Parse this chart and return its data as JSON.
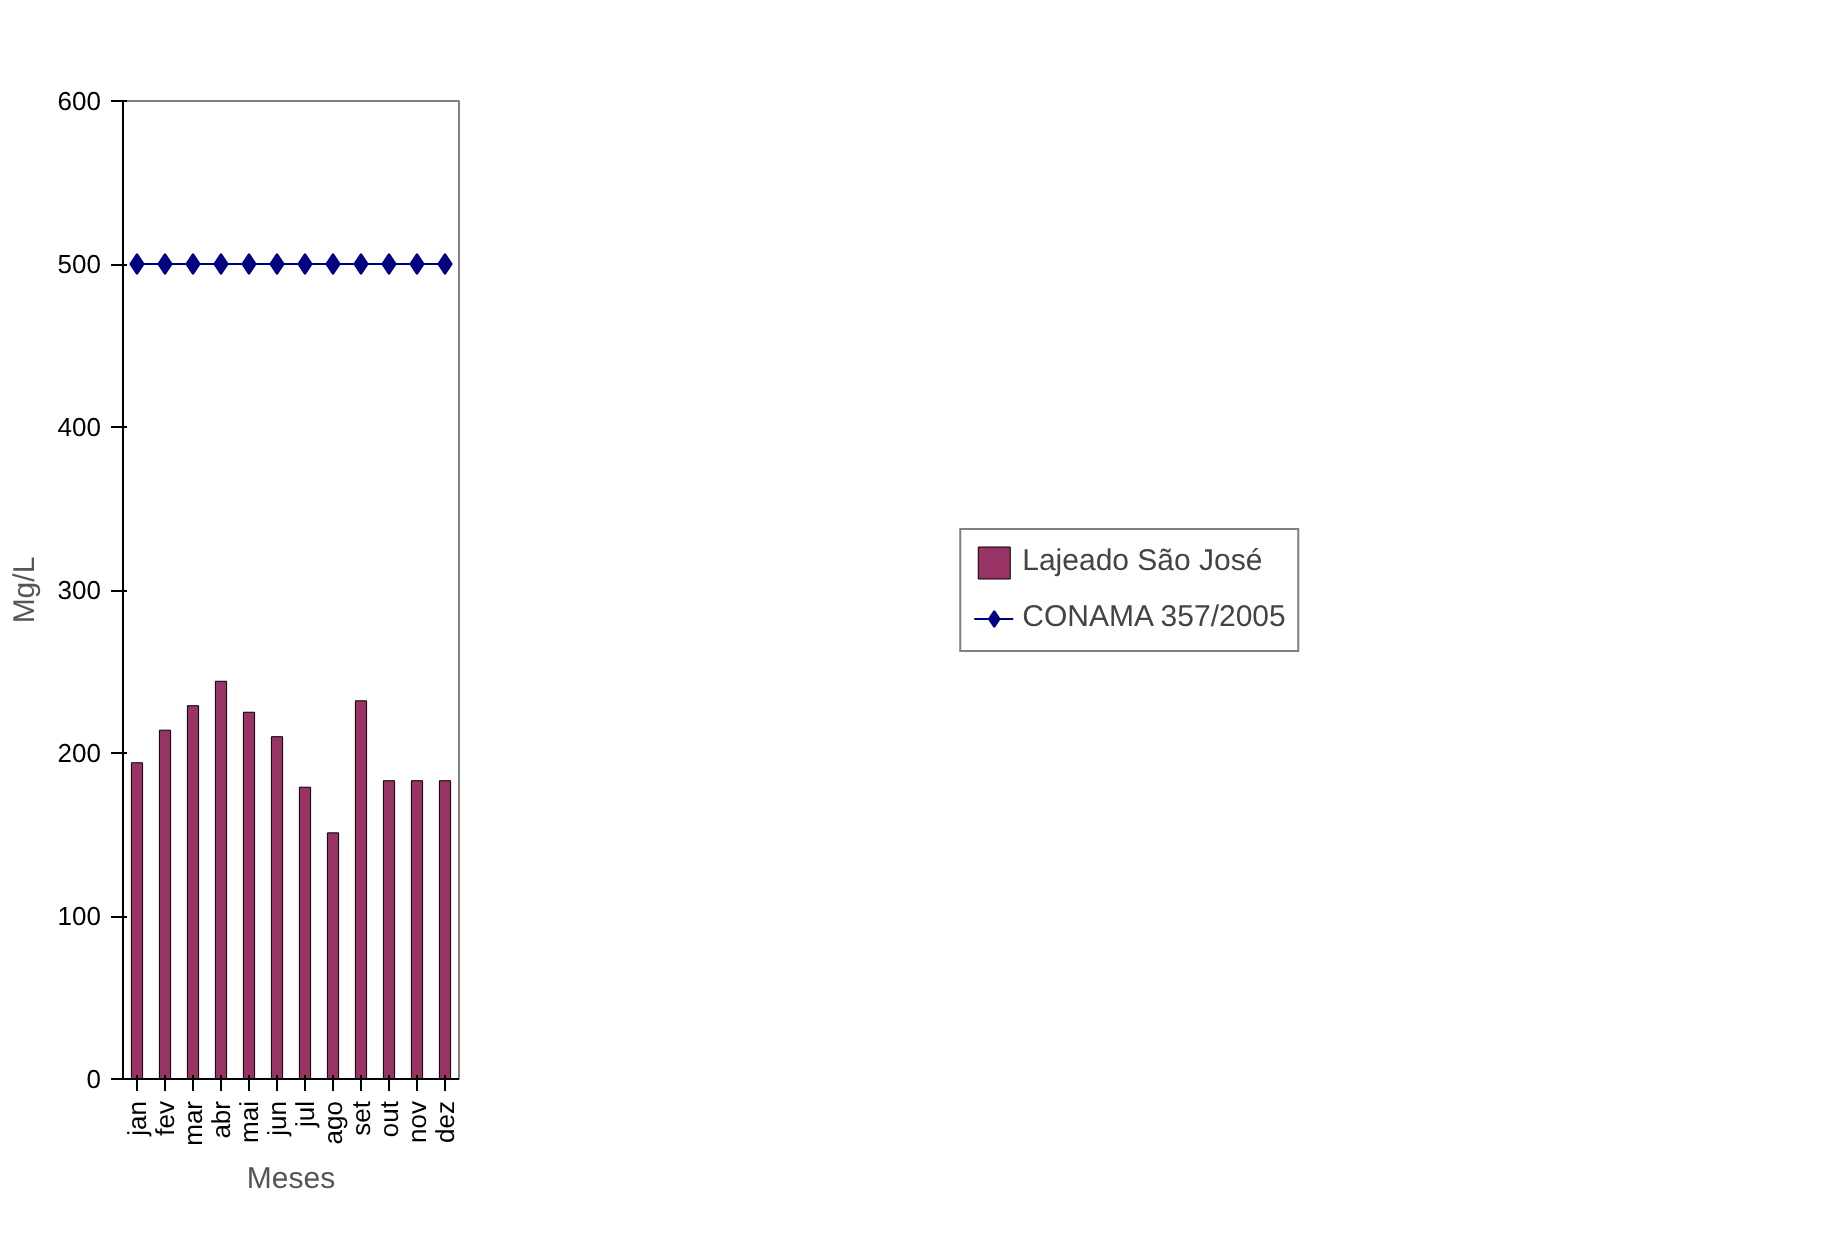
{
  "chart_data": {
    "type": "bar",
    "xlabel": "Meses",
    "ylabel": "Mg/L",
    "categories": [
      "jan",
      "fev",
      "mar",
      "abr",
      "mai",
      "jun",
      "jul",
      "ago",
      "set",
      "out",
      "nov",
      "dez"
    ],
    "series": [
      {
        "name": "Lajeado São José",
        "color": "#993366",
        "values": [
          194,
          214,
          229,
          244,
          225,
          210,
          179,
          151,
          232,
          183,
          183,
          183
        ]
      },
      {
        "name": "CONAMA 357/2005",
        "type": "line",
        "color": "#000080",
        "marker": "diamond",
        "values": [
          500,
          500,
          500,
          500,
          500,
          500,
          500,
          500,
          500,
          500,
          500,
          500
        ]
      }
    ],
    "ylim": [
      0,
      600
    ],
    "yticks": [
      0,
      100,
      200,
      300,
      400,
      500,
      600
    ],
    "grid": false,
    "legend": "right"
  }
}
